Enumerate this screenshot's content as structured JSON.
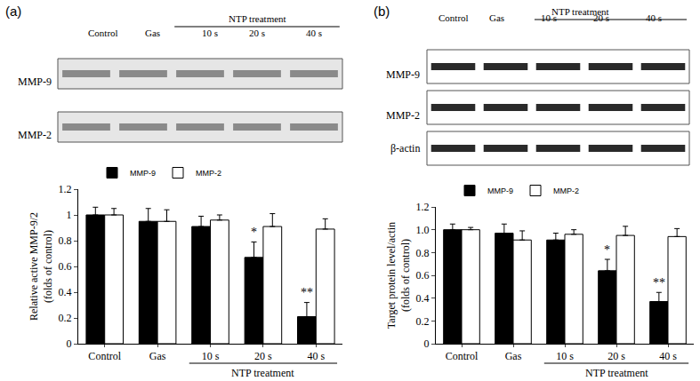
{
  "chart_data": [
    {
      "type": "bar",
      "panel_label": "(a)",
      "categories": [
        "Control",
        "Gas",
        "10 s",
        "20 s",
        "40 s"
      ],
      "group_label": "NTP treatment",
      "group_categories": [
        "10 s",
        "20 s",
        "40 s"
      ],
      "blot_rows": [
        "MMP-9",
        "MMP-2"
      ],
      "y_label": "Relative active MMP-9/2 (folds of control)",
      "series": [
        {
          "name": "MMP-9",
          "color": "#000000",
          "values": [
            1.0,
            0.95,
            0.91,
            0.67,
            0.21
          ],
          "errors": [
            0.06,
            0.1,
            0.08,
            0.12,
            0.11
          ],
          "significance": [
            null,
            null,
            null,
            "*",
            "**"
          ]
        },
        {
          "name": "MMP-2",
          "color": "#ffffff",
          "values": [
            1.0,
            0.95,
            0.96,
            0.91,
            0.89
          ],
          "errors": [
            0.05,
            0.09,
            0.04,
            0.1,
            0.08
          ],
          "significance": [
            null,
            null,
            null,
            null,
            null
          ]
        }
      ],
      "ylim": [
        0,
        1.2
      ],
      "yticks": [
        0,
        0.2,
        0.4,
        0.6,
        0.8,
        1,
        1.2
      ],
      "legend": "top"
    },
    {
      "type": "bar",
      "panel_label": "(b)",
      "categories": [
        "Control",
        "Gas",
        "10 s",
        "20 s",
        "40 s"
      ],
      "group_label": "NTP treatment",
      "group_categories": [
        "10 s",
        "20 s",
        "40 s"
      ],
      "blot_rows": [
        "MMP-9",
        "MMP-2",
        "β-actin"
      ],
      "y_label": "Target protein level/actin (folds of control)",
      "series": [
        {
          "name": "MMP-9",
          "color": "#000000",
          "values": [
            1.0,
            0.97,
            0.91,
            0.64,
            0.37
          ],
          "errors": [
            0.05,
            0.08,
            0.06,
            0.1,
            0.08
          ],
          "significance": [
            null,
            null,
            null,
            "*",
            "**"
          ]
        },
        {
          "name": "MMP-2",
          "color": "#ffffff",
          "values": [
            1.0,
            0.91,
            0.96,
            0.95,
            0.94
          ],
          "errors": [
            0.02,
            0.08,
            0.04,
            0.08,
            0.07
          ],
          "significance": [
            null,
            null,
            null,
            null,
            null
          ]
        }
      ],
      "ylim": [
        0,
        1.2
      ],
      "yticks": [
        0,
        0.2,
        0.4,
        0.6,
        0.8,
        {
          "value": 1,
          "label": "1.0"
        },
        1.2
      ],
      "legend": "top"
    }
  ]
}
